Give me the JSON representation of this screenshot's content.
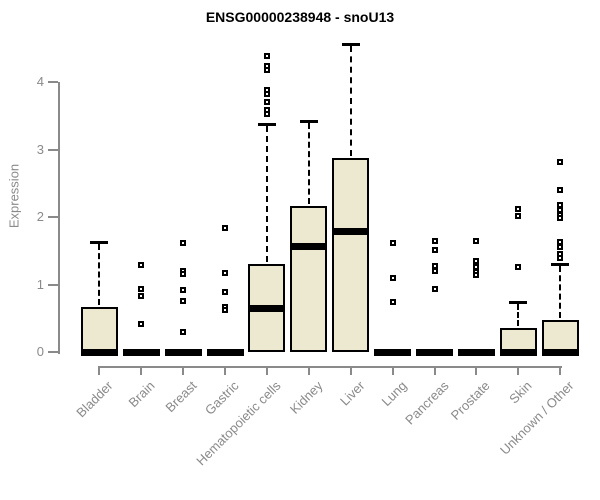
{
  "page": {
    "background": "#ffffff"
  },
  "chart_data": {
    "type": "boxplot",
    "title": "ENSG00000238948 - snoU13",
    "xlabel": "",
    "ylabel": "Expression",
    "ylim": [
      0,
      4.6
    ],
    "yticks": [
      0,
      1,
      2,
      3,
      4
    ],
    "grid": false,
    "legend": "none",
    "categories": [
      "Bladder",
      "Brain",
      "Breast",
      "Gastric",
      "Hematopoietic cells",
      "Kidney",
      "Liver",
      "Lung",
      "Pancreas",
      "Prostate",
      "Skin",
      "Unknown / Other"
    ],
    "boxes": [
      {
        "category": "Bladder",
        "whisker_low": 0,
        "q1": 0,
        "median": 0,
        "q3": 0.66,
        "whisker_high": 1.63,
        "outliers": []
      },
      {
        "category": "Brain",
        "whisker_low": 0,
        "q1": 0,
        "median": 0,
        "q3": 0,
        "whisker_high": 0,
        "outliers": [
          1.29,
          0.93,
          0.83,
          0.41
        ]
      },
      {
        "category": "Breast",
        "whisker_low": 0,
        "q1": 0,
        "median": 0,
        "q3": 0,
        "whisker_high": 0,
        "outliers": [
          1.62,
          1.2,
          1.16,
          0.92,
          0.75,
          0.29
        ]
      },
      {
        "category": "Gastric",
        "whisker_low": 0,
        "q1": 0,
        "median": 0,
        "q3": 0,
        "whisker_high": 0,
        "outliers": [
          1.83,
          1.17,
          0.89,
          0.67,
          0.62
        ]
      },
      {
        "category": "Hematopoietic cells",
        "whisker_low": 0,
        "q1": 0,
        "median": 0.65,
        "q3": 1.31,
        "whisker_high": 3.38,
        "outliers": [
          4.39,
          4.24,
          4.18,
          3.88,
          3.82,
          3.7,
          3.58,
          3.52
        ]
      },
      {
        "category": "Kidney",
        "whisker_low": 0,
        "q1": 0,
        "median": 1.56,
        "q3": 2.17,
        "whisker_high": 3.42,
        "outliers": []
      },
      {
        "category": "Liver",
        "whisker_low": 0,
        "q1": 0,
        "median": 1.79,
        "q3": 2.87,
        "whisker_high": 4.57,
        "outliers": []
      },
      {
        "category": "Lung",
        "whisker_low": 0,
        "q1": 0,
        "median": 0,
        "q3": 0,
        "whisker_high": 0,
        "outliers": [
          1.62,
          1.1,
          0.74
        ]
      },
      {
        "category": "Pancreas",
        "whisker_low": 0,
        "q1": 0,
        "median": 0,
        "q3": 0,
        "whisker_high": 0,
        "outliers": [
          1.64,
          1.51,
          1.28,
          1.2,
          0.93
        ]
      },
      {
        "category": "Prostate",
        "whisker_low": 0,
        "q1": 0,
        "median": 0,
        "q3": 0,
        "whisker_high": 0,
        "outliers": [
          1.65,
          1.35,
          1.26,
          1.19,
          1.14
        ]
      },
      {
        "category": "Skin",
        "whisker_low": 0,
        "q1": 0,
        "median": 0,
        "q3": 0.35,
        "whisker_high": 0.74,
        "outliers": [
          2.12,
          2.02,
          1.26
        ]
      },
      {
        "category": "Unknown / Other",
        "whisker_low": 0,
        "q1": 0,
        "median": 0,
        "q3": 0.48,
        "whisker_high": 1.31,
        "outliers": [
          2.81,
          2.4,
          2.18,
          2.1,
          2.03,
          1.98,
          1.63,
          1.56,
          1.45,
          1.39
        ]
      }
    ],
    "style": {
      "box_fill": "#EDE8D0",
      "box_border": "#000000",
      "median_color": "#000000",
      "axis_color": "#8A8A8A",
      "title_color": "#000000",
      "outlier_marker": "open-square"
    }
  }
}
